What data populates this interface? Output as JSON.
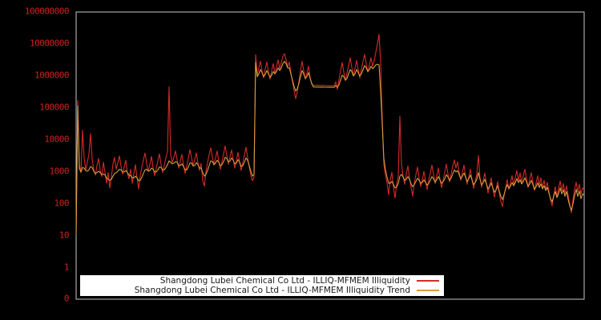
{
  "colors": {
    "background": "#000000",
    "plot_border": "#c8c8c8",
    "tick_label_color": "#cc2222",
    "legend_background": "#ffffff",
    "legend_text": "#1a1a1a"
  },
  "chart_data": {
    "type": "line",
    "title": "",
    "xlabel": "",
    "ylabel": "",
    "yscale": "symlog",
    "grid": "off",
    "x_tick_labels": "none",
    "legend_position": "lower center",
    "ylim": [
      0,
      100000000
    ],
    "yticks": [
      {
        "label": "100000000",
        "value": 100000000
      },
      {
        "label": "10000000",
        "value": 10000000
      },
      {
        "label": "1000000",
        "value": 1000000
      },
      {
        "label": "100000",
        "value": 100000
      },
      {
        "label": "10000",
        "value": 10000
      },
      {
        "label": "1000",
        "value": 1000
      },
      {
        "label": "100",
        "value": 100
      },
      {
        "label": "10",
        "value": 10
      },
      {
        "label": "1",
        "value": 1
      },
      {
        "label": "0",
        "value": 0
      }
    ],
    "series": [
      {
        "name": "Shangdong Lubei Chemical Co Ltd - ILLIQ-MFMEM Illiquidity",
        "color": "#d42a2a",
        "values": [
          12,
          160000,
          1600,
          900,
          19000,
          2600,
          1100,
          1900,
          3400,
          15000,
          2400,
          1100,
          750,
          1500,
          2500,
          1050,
          680,
          1900,
          950,
          420,
          900,
          300,
          650,
          1700,
          2700,
          1150,
          1800,
          3000,
          1450,
          800,
          1350,
          2200,
          880,
          580,
          1150,
          420,
          820,
          1600,
          620,
          280,
          720,
          1350,
          2300,
          3700,
          1750,
          1000,
          1650,
          2900,
          1300,
          720,
          1250,
          2100,
          3500,
          1600,
          900,
          1550,
          2600,
          4100,
          440000,
          3200,
          1900,
          2700,
          4300,
          2300,
          1250,
          2100,
          3300,
          1550,
          850,
          1450,
          2500,
          4700,
          2700,
          1450,
          2300,
          3700,
          1850,
          1050,
          1750,
          500,
          340,
          950,
          1850,
          3300,
          5300,
          2900,
          1550,
          2600,
          4300,
          2050,
          1150,
          1950,
          3400,
          6200,
          3100,
          1650,
          2800,
          4600,
          2400,
          1250,
          2150,
          3900,
          1950,
          1050,
          1850,
          3100,
          5600,
          2700,
          1350,
          750,
          500,
          650,
          4400000,
          1000000,
          1700000,
          2700000,
          1350000,
          820000,
          1550000,
          2600000,
          1250000,
          750000,
          1400000,
          2300000,
          1150000,
          1800000,
          3000000,
          1600000,
          2500000,
          3900000,
          4700000,
          3000000,
          1800000,
          2600000,
          1200000,
          620000,
          330000,
          185000,
          300000,
          650000,
          1400000,
          2700000,
          1400000,
          750000,
          1150000,
          1900000,
          850000,
          520000,
          491000,
          488000,
          486000,
          484000,
          482000,
          480000,
          478000,
          476000,
          474000,
          472000,
          471000,
          470000,
          469000,
          468000,
          620000,
          360000,
          720000,
          1350000,
          2500000,
          1250000,
          680000,
          1150000,
          2000000,
          3500000,
          1750000,
          950000,
          1650000,
          2900000,
          1450000,
          820000,
          1550000,
          2700000,
          4500000,
          2300000,
          1250000,
          2100000,
          3500000,
          1900000,
          2900000,
          5200000,
          9500000,
          19000000,
          2500000,
          45000,
          1600,
          750,
          430,
          185,
          530,
          920,
          310,
          145,
          390,
          680,
          52000,
          1700,
          730,
          390,
          820,
          1450,
          620,
          310,
          165,
          430,
          780,
          1350,
          620,
          330,
          560,
          980,
          490,
          265,
          510,
          870,
          1550,
          770,
          410,
          720,
          1250,
          570,
          305,
          530,
          930,
          1650,
          820,
          460,
          820,
          1450,
          2250,
          1250,
          1950,
          950,
          520,
          930,
          1550,
          720,
          390,
          670,
          1150,
          540,
          290,
          490,
          830,
          3100,
          620,
          310,
          520,
          880,
          420,
          205,
          360,
          620,
          290,
          155,
          270,
          470,
          215,
          115,
          78,
          165,
          310,
          540,
          270,
          430,
          720,
          370,
          620,
          1050,
          520,
          880,
          430,
          720,
          1150,
          580,
          310,
          540,
          900,
          450,
          250,
          430,
          720,
          370,
          620,
          310,
          520,
          270,
          450,
          230,
          125,
          82,
          185,
          330,
          165,
          290,
          490,
          250,
          410,
          205,
          350,
          175,
          95,
          50,
          125,
          270,
          450,
          230,
          390,
          195,
          300,
          260
        ]
      },
      {
        "name": "Shangdong Lubei Chemical Co Ltd - ILLIQ-MFMEM Illiquidity Trend",
        "color": "#d2a13c",
        "values": [
          10,
          110000,
          1200,
          950,
          1300,
          1250,
          1050,
          1000,
          1100,
          1400,
          1300,
          1000,
          850,
          900,
          1000,
          900,
          780,
          820,
          760,
          620,
          560,
          520,
          560,
          700,
          850,
          900,
          1000,
          1150,
          1100,
          950,
          950,
          1050,
          900,
          760,
          730,
          620,
          620,
          700,
          620,
          500,
          520,
          650,
          850,
          1100,
          1150,
          1000,
          1050,
          1250,
          1150,
          950,
          950,
          1100,
          1350,
          1300,
          1100,
          1100,
          1300,
          1600,
          2100,
          1900,
          1700,
          1800,
          2000,
          1900,
          1500,
          1500,
          1700,
          1400,
          1100,
          1100,
          1350,
          1800,
          1800,
          1450,
          1500,
          1850,
          1600,
          1250,
          1250,
          900,
          700,
          800,
          1050,
          1500,
          2100,
          2000,
          1600,
          1800,
          2200,
          1900,
          1500,
          1600,
          2000,
          2700,
          2500,
          1950,
          2100,
          2600,
          2200,
          1700,
          1800,
          2300,
          1900,
          1400,
          1500,
          1900,
          2600,
          2200,
          1500,
          1000,
          700,
          800,
          2500000,
          900000,
          1100000,
          1500000,
          1200000,
          900000,
          1050000,
          1400000,
          1100000,
          850000,
          1000000,
          1300000,
          1100000,
          1300000,
          1700000,
          1400000,
          1700000,
          2300000,
          2700000,
          2300000,
          1700000,
          1700000,
          1100000,
          700000,
          450000,
          320000,
          380000,
          550000,
          900000,
          1400000,
          1100000,
          800000,
          900000,
          1200000,
          800000,
          560000,
          430000,
          428000,
          427000,
          426000,
          425000,
          424000,
          423000,
          422000,
          421000,
          420000,
          420000,
          419000,
          419000,
          418000,
          480000,
          420000,
          500000,
          700000,
          1000000,
          900000,
          700000,
          800000,
          1100000,
          1500000,
          1300000,
          950000,
          1100000,
          1500000,
          1200000,
          950000,
          1100000,
          1500000,
          2000000,
          1700000,
          1300000,
          1500000,
          1900000,
          1600000,
          1800000,
          2100000,
          2200000,
          2100000,
          300000,
          30000,
          2500,
          1100,
          650,
          420,
          420,
          480,
          380,
          300,
          320,
          420,
          700,
          800,
          650,
          520,
          560,
          680,
          560,
          400,
          330,
          380,
          480,
          600,
          520,
          420,
          450,
          540,
          450,
          370,
          420,
          520,
          680,
          580,
          460,
          540,
          680,
          540,
          420,
          470,
          580,
          780,
          660,
          520,
          620,
          820,
          1100,
          950,
          1050,
          780,
          580,
          700,
          880,
          660,
          480,
          580,
          760,
          540,
          380,
          440,
          560,
          900,
          560,
          380,
          440,
          560,
          400,
          280,
          330,
          430,
          300,
          220,
          260,
          350,
          240,
          165,
          130,
          185,
          280,
          380,
          290,
          340,
          440,
          350,
          440,
          580,
          440,
          540,
          400,
          480,
          620,
          470,
          330,
          400,
          520,
          380,
          270,
          330,
          430,
          310,
          400,
          280,
          350,
          250,
          310,
          210,
          140,
          110,
          165,
          230,
          150,
          200,
          300,
          195,
          265,
          165,
          230,
          130,
          82,
          60,
          95,
          170,
          270,
          165,
          240,
          140,
          195,
          180
        ]
      }
    ]
  },
  "legend": {
    "entries": [
      {
        "label": "Shangdong Lubei Chemical Co Ltd - ILLIQ-MFMEM Illiquidity"
      },
      {
        "label": "Shangdong Lubei Chemical Co Ltd - ILLIQ-MFMEM Illiquidity Trend"
      }
    ]
  }
}
